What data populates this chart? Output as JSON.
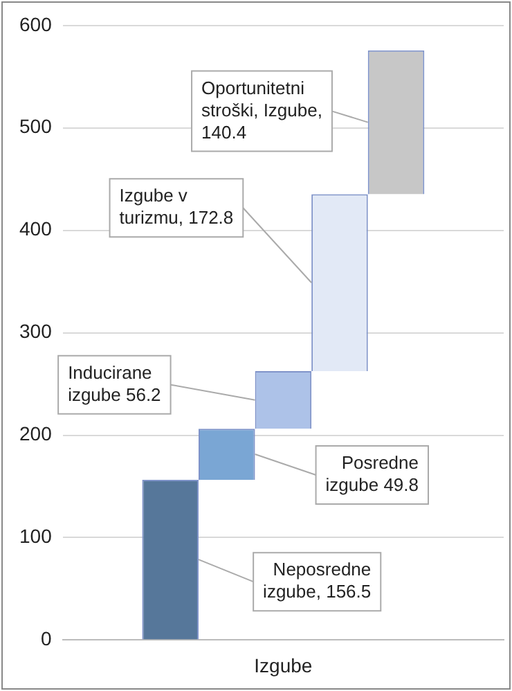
{
  "chart_data": {
    "type": "bar",
    "categories": [
      "Izgube"
    ],
    "series": [
      {
        "color": "#56779a",
        "values": [
          156.5
        ],
        "base": [
          0
        ],
        "value_labels": [
          "Neposredne izgube, 156.5"
        ]
      },
      {
        "color": "#7aa6d4",
        "values": [
          49.8
        ],
        "base": [
          156.5
        ],
        "value_labels": [
          "Posredne izgube 49.8"
        ]
      },
      {
        "color": "#adc2e8",
        "values": [
          56.2
        ],
        "base": [
          206.3
        ],
        "value_labels": [
          "Inducirane izgube 56.2"
        ]
      },
      {
        "color": "#e2e9f6",
        "values": [
          172.8
        ],
        "base": [
          262.5
        ],
        "value_labels": [
          "Izgube v turizmu, 172.8"
        ]
      },
      {
        "color": "#c7c7c7",
        "values": [
          140.4
        ],
        "base": [
          435.3
        ],
        "value_labels": [
          "Oportunitetni stroški, Izgube, 140.4"
        ]
      }
    ],
    "ylim": [
      0,
      600
    ],
    "yticks": [
      0,
      100,
      200,
      300,
      400,
      500,
      600
    ],
    "grid": "y",
    "legend": false
  }
}
